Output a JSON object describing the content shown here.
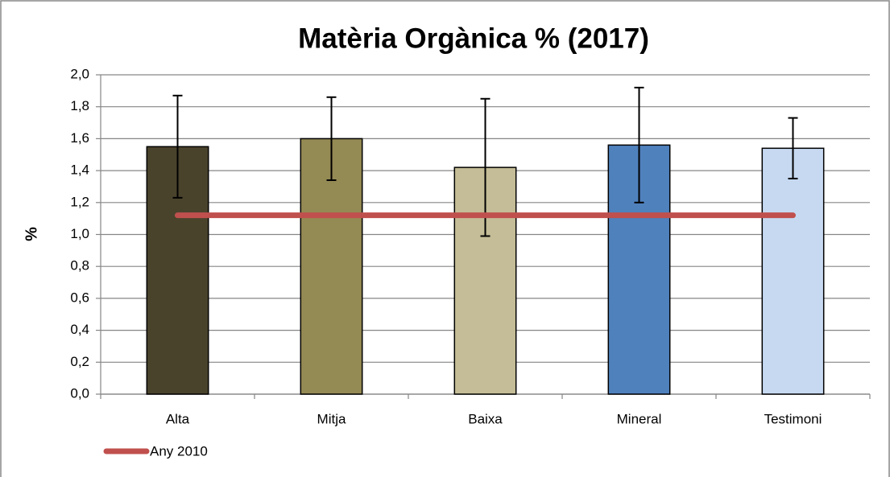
{
  "chart_data": {
    "type": "bar",
    "title": "Matèria Orgànica %  (2017)",
    "y_label": "%",
    "categories": [
      "Alta",
      "Mitja",
      "Baixa",
      "Mineral",
      "Testimoni"
    ],
    "series": [
      {
        "type": "bar",
        "colors": [
          "#4a432c",
          "#948a54",
          "#c4bd97",
          "#4f81bd",
          "#c6d9f1"
        ],
        "values": [
          1.55,
          1.6,
          1.42,
          1.56,
          1.54
        ],
        "errors": [
          0.32,
          0.26,
          0.43,
          0.36,
          0.19
        ]
      },
      {
        "type": "line",
        "name": "Any 2010",
        "color": "#c0504d",
        "values": [
          1.12,
          1.12,
          1.12,
          1.12,
          1.12
        ]
      }
    ],
    "ylim": [
      0,
      2
    ],
    "yticks": [
      {
        "value": 0,
        "label": "0,0"
      },
      {
        "value": 0.2,
        "label": "0,2"
      },
      {
        "value": 0.4,
        "label": "0,4"
      },
      {
        "value": 0.6,
        "label": "0,6"
      },
      {
        "value": 0.8,
        "label": "0,8"
      },
      {
        "value": 1,
        "label": "1,0"
      },
      {
        "value": 1.2,
        "label": "1,2"
      },
      {
        "value": 1.4,
        "label": "1,4"
      },
      {
        "value": 1.6,
        "label": "1,6"
      },
      {
        "value": 1.8,
        "label": "1,8"
      },
      {
        "value": 2,
        "label": "2,0"
      }
    ],
    "grid": true,
    "legend": "bottom-left"
  }
}
